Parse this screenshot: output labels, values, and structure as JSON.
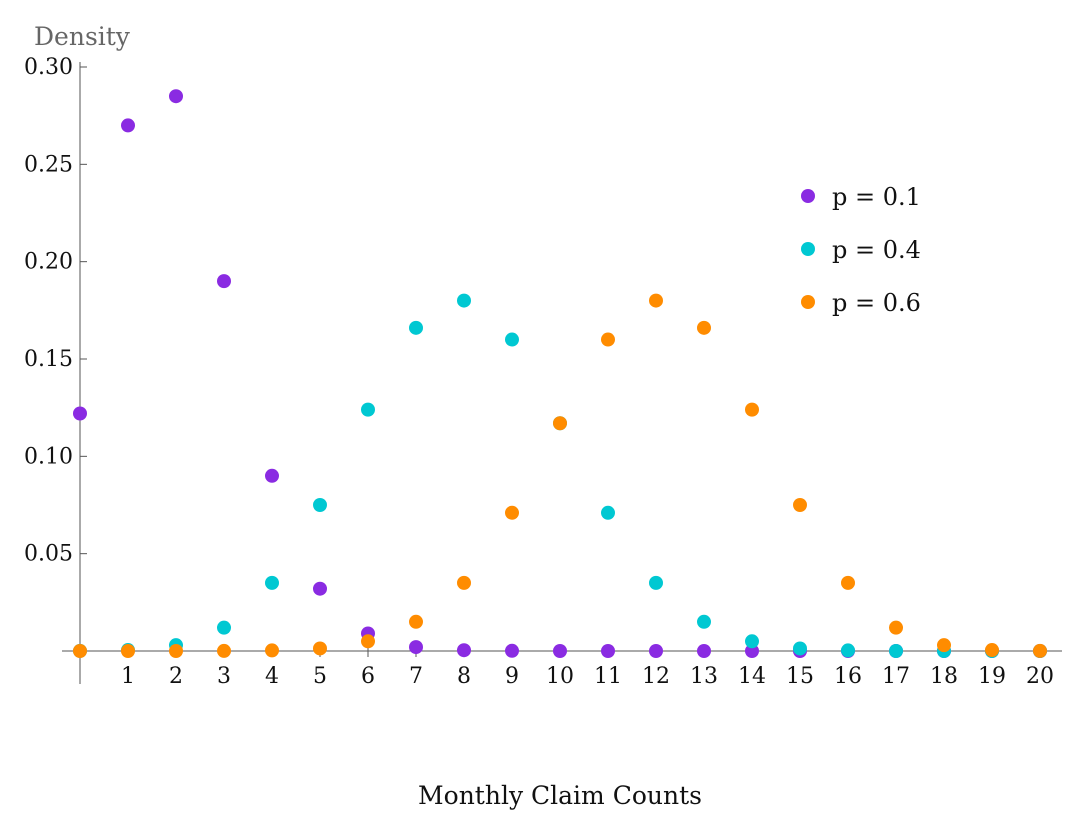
{
  "chart_data": {
    "type": "scatter",
    "xlabel": "Monthly Claim Counts",
    "ylabel": "Density",
    "x": [
      0,
      1,
      2,
      3,
      4,
      5,
      6,
      7,
      8,
      9,
      10,
      11,
      12,
      13,
      14,
      15,
      16,
      17,
      18,
      19,
      20
    ],
    "x_ticks": [
      1,
      2,
      3,
      4,
      5,
      6,
      7,
      8,
      9,
      10,
      11,
      12,
      13,
      14,
      15,
      16,
      17,
      18,
      19,
      20
    ],
    "y_ticks": [
      "0.05",
      "0.10",
      "0.15",
      "0.20",
      "0.25",
      "0.30"
    ],
    "xlim": [
      0,
      20
    ],
    "ylim": [
      0,
      0.3
    ],
    "grid": false,
    "legend": "right",
    "series": [
      {
        "name": "p = 0.1",
        "color": "#8a2be2",
        "values": [
          0.122,
          0.27,
          0.285,
          0.19,
          0.09,
          0.032,
          0.009,
          0.002,
          0.0004,
          0.0001,
          0.0,
          0.0,
          0.0,
          0.0,
          0.0,
          0.0,
          0.0,
          0.0,
          0.0,
          0.0,
          0.0
        ]
      },
      {
        "name": "p = 0.4",
        "color": "#00c8d2",
        "values": [
          4e-05,
          0.0005,
          0.003,
          0.012,
          0.035,
          0.075,
          0.124,
          0.166,
          0.18,
          0.16,
          0.117,
          0.071,
          0.035,
          0.015,
          0.005,
          0.0013,
          0.0003,
          0.0,
          0.0,
          0.0,
          0.0
        ]
      },
      {
        "name": "p = 0.6",
        "color": "#ff8c00",
        "values": [
          0.0,
          0.0,
          0.0,
          4e-05,
          0.0003,
          0.0013,
          0.005,
          0.015,
          0.035,
          0.071,
          0.117,
          0.16,
          0.18,
          0.166,
          0.124,
          0.075,
          0.035,
          0.012,
          0.003,
          0.0005,
          4e-05
        ]
      }
    ]
  }
}
